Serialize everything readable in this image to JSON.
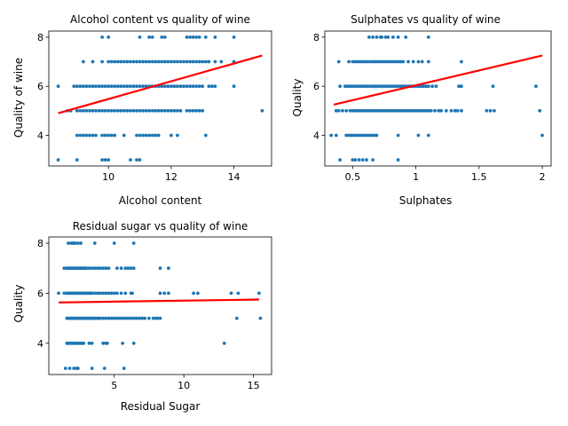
{
  "chart_data": [
    {
      "type": "scatter",
      "title": "Alcohol content vs quality of wine",
      "xlabel": "Alcohol content",
      "ylabel": "Quality of wine",
      "xlim": [
        8.1,
        15.2
      ],
      "ylim": [
        2.75,
        8.25
      ],
      "xticks": [
        10,
        12,
        14
      ],
      "yticks": [
        4,
        6,
        8
      ],
      "point_color": "#1f77b4",
      "fit_color": "#ff0000",
      "fit_line": [
        [
          8.4,
          4.9
        ],
        [
          14.9,
          7.25
        ]
      ],
      "series": [
        {
          "y": 3,
          "x": [
            8.4,
            9.0,
            9.8,
            9.9,
            10.0,
            10.7,
            10.9,
            11.0
          ]
        },
        {
          "y": 4,
          "x": [
            9.0,
            9.1,
            9.2,
            9.3,
            9.4,
            9.5,
            9.6,
            9.8,
            9.9,
            10.0,
            10.1,
            10.2,
            10.5,
            10.9,
            11.0,
            11.1,
            11.2,
            11.3,
            11.4,
            11.5,
            11.6,
            12.0,
            12.2,
            13.1
          ]
        },
        {
          "y": 5,
          "x": [
            8.7,
            8.8,
            9.0,
            9.1,
            9.2,
            9.3,
            9.4,
            9.5,
            9.6,
            9.7,
            9.8,
            9.9,
            10.0,
            10.1,
            10.2,
            10.3,
            10.4,
            10.5,
            10.6,
            10.7,
            10.8,
            10.9,
            11.0,
            11.1,
            11.2,
            11.3,
            11.4,
            11.5,
            11.6,
            11.7,
            11.8,
            11.9,
            12.0,
            12.1,
            12.2,
            12.3,
            12.5,
            12.6,
            12.7,
            12.8,
            12.9,
            13.0,
            14.9
          ]
        },
        {
          "y": 6,
          "x": [
            8.4,
            8.9,
            9.0,
            9.1,
            9.2,
            9.3,
            9.4,
            9.5,
            9.6,
            9.7,
            9.8,
            9.9,
            10.0,
            10.1,
            10.2,
            10.3,
            10.4,
            10.5,
            10.6,
            10.7,
            10.8,
            10.9,
            11.0,
            11.1,
            11.2,
            11.3,
            11.4,
            11.5,
            11.6,
            11.7,
            11.8,
            11.9,
            12.0,
            12.1,
            12.2,
            12.3,
            12.4,
            12.5,
            12.6,
            12.7,
            12.8,
            12.9,
            13.0,
            13.2,
            13.3,
            13.4,
            14.0
          ]
        },
        {
          "y": 7,
          "x": [
            9.2,
            9.5,
            9.8,
            10.0,
            10.1,
            10.2,
            10.3,
            10.4,
            10.5,
            10.6,
            10.7,
            10.8,
            10.9,
            11.0,
            11.1,
            11.2,
            11.3,
            11.4,
            11.5,
            11.6,
            11.7,
            11.8,
            11.9,
            12.0,
            12.1,
            12.2,
            12.3,
            12.4,
            12.5,
            12.6,
            12.7,
            12.8,
            12.9,
            13.0,
            13.1,
            13.2,
            13.4,
            13.6,
            14.0
          ]
        },
        {
          "y": 8,
          "x": [
            9.8,
            10.0,
            11.0,
            11.3,
            11.4,
            11.7,
            11.8,
            12.5,
            12.6,
            12.7,
            12.8,
            12.9,
            13.1,
            13.4,
            14.0
          ]
        }
      ]
    },
    {
      "type": "scatter",
      "title": "Sulphates vs quality of wine",
      "xlabel": "Sulphates",
      "ylabel": "Quality",
      "xlim": [
        0.28,
        2.07
      ],
      "ylim": [
        2.75,
        8.25
      ],
      "xticks": [
        0.5,
        1.0,
        1.5,
        2.0
      ],
      "yticks": [
        4,
        6,
        8
      ],
      "point_color": "#1f77b4",
      "fit_color": "#ff0000",
      "fit_line": [
        [
          0.35,
          5.25
        ],
        [
          2.0,
          7.25
        ]
      ],
      "series": [
        {
          "y": 3,
          "x": [
            0.4,
            0.5,
            0.52,
            0.55,
            0.58,
            0.61,
            0.66,
            0.86
          ]
        },
        {
          "y": 4,
          "x": [
            0.33,
            0.37,
            0.45,
            0.47,
            0.49,
            0.51,
            0.53,
            0.55,
            0.57,
            0.59,
            0.61,
            0.63,
            0.65,
            0.67,
            0.69,
            0.86,
            1.02,
            1.1,
            2.0
          ]
        },
        {
          "y": 5,
          "x": [
            0.37,
            0.39,
            0.42,
            0.45,
            0.48,
            0.5,
            0.52,
            0.54,
            0.56,
            0.58,
            0.6,
            0.62,
            0.64,
            0.66,
            0.68,
            0.7,
            0.72,
            0.74,
            0.76,
            0.78,
            0.8,
            0.82,
            0.84,
            0.86,
            0.88,
            0.9,
            0.92,
            0.94,
            0.96,
            0.98,
            1.0,
            1.02,
            1.04,
            1.06,
            1.08,
            1.1,
            1.12,
            1.15,
            1.18,
            1.2,
            1.24,
            1.28,
            1.31,
            1.33,
            1.36,
            1.56,
            1.59,
            1.62,
            1.98
          ]
        },
        {
          "y": 6,
          "x": [
            0.4,
            0.44,
            0.46,
            0.48,
            0.5,
            0.52,
            0.54,
            0.56,
            0.58,
            0.6,
            0.62,
            0.64,
            0.66,
            0.68,
            0.7,
            0.72,
            0.74,
            0.76,
            0.78,
            0.8,
            0.82,
            0.84,
            0.86,
            0.88,
            0.9,
            0.92,
            0.94,
            0.96,
            0.98,
            1.0,
            1.02,
            1.04,
            1.06,
            1.08,
            1.1,
            1.13,
            1.16,
            1.34,
            1.36,
            1.61,
            1.95
          ]
        },
        {
          "y": 7,
          "x": [
            0.39,
            0.47,
            0.5,
            0.52,
            0.54,
            0.56,
            0.58,
            0.6,
            0.62,
            0.64,
            0.66,
            0.68,
            0.7,
            0.72,
            0.74,
            0.76,
            0.78,
            0.8,
            0.82,
            0.84,
            0.86,
            0.88,
            0.9,
            0.94,
            0.98,
            1.02,
            1.05,
            1.1,
            1.36
          ]
        },
        {
          "y": 8,
          "x": [
            0.63,
            0.66,
            0.69,
            0.72,
            0.73,
            0.76,
            0.78,
            0.82,
            0.86,
            0.92,
            1.1
          ]
        }
      ]
    },
    {
      "type": "scatter",
      "title": "Residual sugar vs quality of wine",
      "xlabel": "Residual Sugar",
      "ylabel": "Quality",
      "xlim": [
        0.3,
        16.3
      ],
      "ylim": [
        2.75,
        8.25
      ],
      "xticks": [
        5,
        10,
        15
      ],
      "yticks": [
        4,
        6,
        8
      ],
      "point_color": "#1f77b4",
      "fit_color": "#ff0000",
      "fit_line": [
        [
          1.0,
          5.63
        ],
        [
          15.4,
          5.75
        ]
      ],
      "series": [
        {
          "y": 3,
          "x": [
            1.5,
            1.8,
            2.1,
            2.3,
            2.4,
            3.4,
            4.3,
            5.7
          ]
        },
        {
          "y": 4,
          "x": [
            1.6,
            1.7,
            1.8,
            1.9,
            2.0,
            2.1,
            2.2,
            2.3,
            2.4,
            2.5,
            2.6,
            2.7,
            2.8,
            3.2,
            3.4,
            4.2,
            4.4,
            4.5,
            5.6,
            6.4,
            12.9
          ]
        },
        {
          "y": 5,
          "x": [
            1.6,
            1.7,
            1.8,
            1.9,
            2.0,
            2.1,
            2.2,
            2.3,
            2.4,
            2.5,
            2.6,
            2.7,
            2.8,
            2.9,
            3.0,
            3.1,
            3.2,
            3.3,
            3.4,
            3.5,
            3.6,
            3.7,
            3.8,
            3.9,
            4.0,
            4.2,
            4.4,
            4.6,
            4.8,
            5.0,
            5.2,
            5.4,
            5.6,
            5.8,
            6.0,
            6.2,
            6.4,
            6.6,
            6.8,
            7.0,
            7.2,
            7.5,
            7.8,
            8.0,
            8.1,
            8.3,
            13.8,
            15.5
          ]
        },
        {
          "y": 6,
          "x": [
            1.0,
            1.4,
            1.6,
            1.7,
            1.8,
            1.9,
            2.0,
            2.1,
            2.2,
            2.3,
            2.4,
            2.5,
            2.6,
            2.7,
            2.8,
            2.9,
            3.0,
            3.1,
            3.2,
            3.3,
            3.4,
            3.6,
            3.8,
            4.0,
            4.2,
            4.4,
            4.6,
            4.8,
            5.0,
            5.2,
            5.5,
            5.8,
            6.2,
            6.3,
            8.3,
            8.6,
            8.9,
            10.7,
            11.0,
            13.4,
            13.9,
            15.4
          ]
        },
        {
          "y": 7,
          "x": [
            1.4,
            1.6,
            1.7,
            1.8,
            1.9,
            2.0,
            2.1,
            2.2,
            2.3,
            2.4,
            2.5,
            2.6,
            2.7,
            2.8,
            2.9,
            3.0,
            3.2,
            3.4,
            3.6,
            3.8,
            4.0,
            4.2,
            4.4,
            4.6,
            5.2,
            5.5,
            5.8,
            6.0,
            6.2,
            6.4,
            8.3,
            8.9
          ]
        },
        {
          "y": 8,
          "x": [
            1.7,
            1.9,
            2.0,
            2.1,
            2.2,
            2.4,
            2.6,
            3.6,
            5.0,
            6.4
          ]
        }
      ]
    }
  ]
}
